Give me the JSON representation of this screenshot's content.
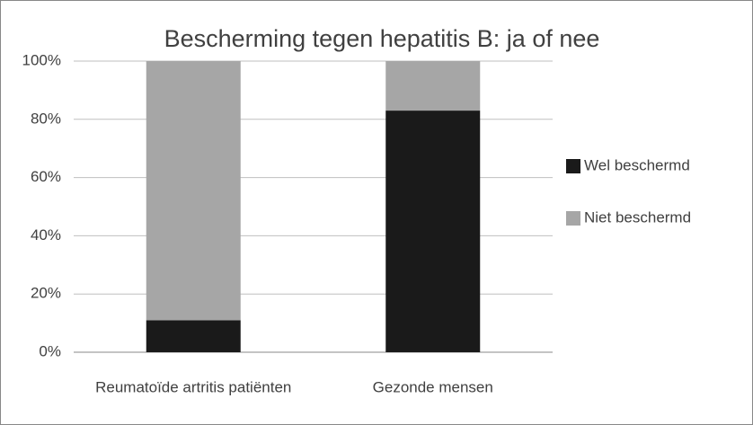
{
  "chart_data": {
    "type": "stacked_bar",
    "title": "Bescherming tegen hepatitis B: ja of nee",
    "categories": [
      "Reumatoïde artritis patiënten",
      "Gezonde mensen"
    ],
    "series": [
      {
        "name": "Wel beschermd",
        "color": "#1a1a1a",
        "values": [
          11,
          83
        ]
      },
      {
        "name": "Niet beschermd",
        "color": "#a6a6a6",
        "values": [
          89,
          17
        ]
      }
    ],
    "ylim": [
      0,
      100
    ],
    "yticks": [
      {
        "value": 0,
        "label": "0%"
      },
      {
        "value": 20,
        "label": "20%"
      },
      {
        "value": 40,
        "label": "40%"
      },
      {
        "value": 60,
        "label": "60%"
      },
      {
        "value": 80,
        "label": "80%"
      },
      {
        "value": 100,
        "label": "100%"
      }
    ],
    "grid": true,
    "legend": "right"
  }
}
